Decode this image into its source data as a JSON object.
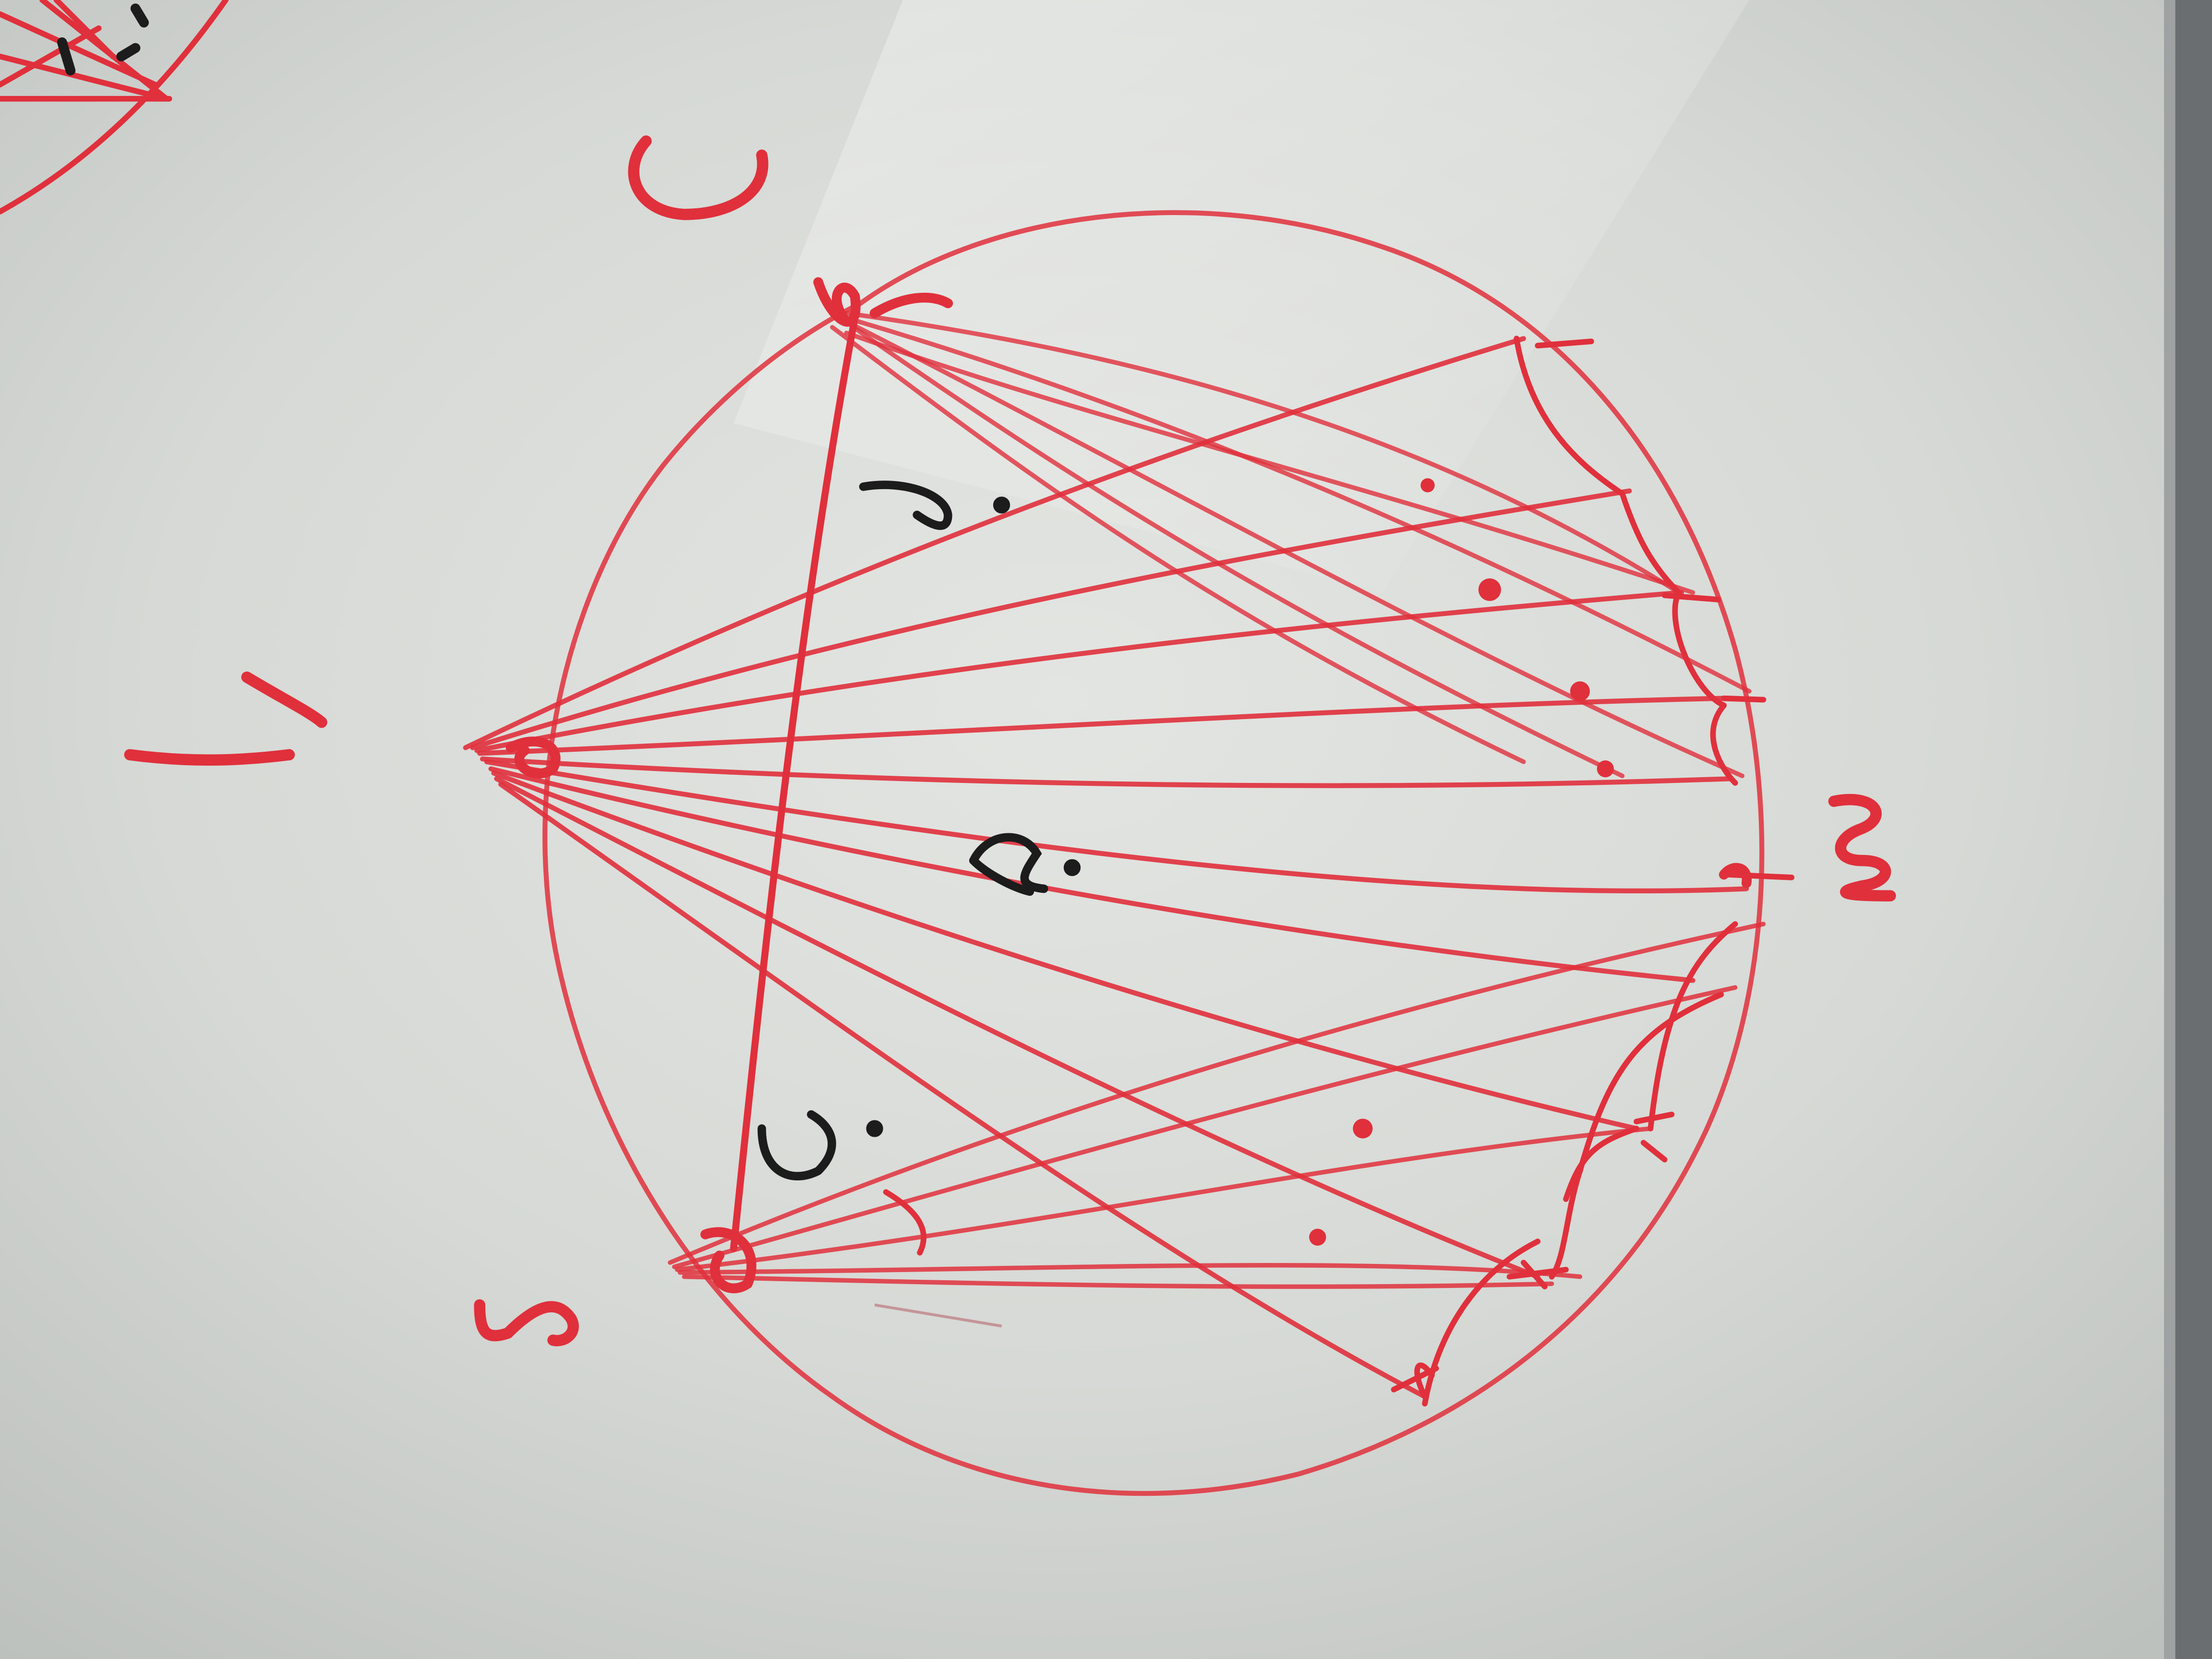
{
  "image": {
    "subject": "whiteboard-drawing",
    "ink_colors": {
      "red": "#e0303c",
      "black": "#1c1c1c",
      "board_light": "#e8eae7",
      "board_dark": "#b9bdb9",
      "frame": "#5a5e60"
    },
    "handwritten_marks": [
      "C",
      "4",
      "S",
      "m",
      "?",
      "?",
      "2."
    ]
  }
}
